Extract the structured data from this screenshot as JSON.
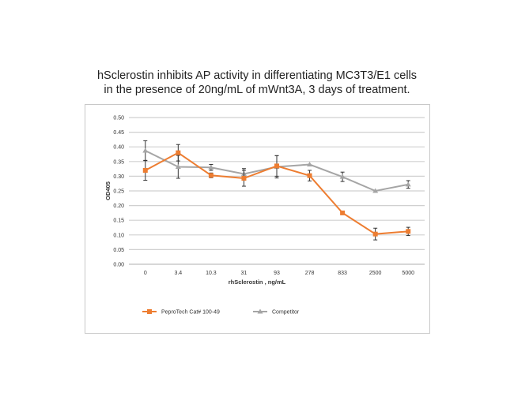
{
  "chart_data": {
    "type": "line",
    "title_lines": [
      "hSclerostin inhibits AP activity in differentiating MC3T3/E1 cells",
      "in the presence of 20ng/mL of mWnt3A, 3 days of treatment."
    ],
    "xlabel": "rhSclerostin , ng/mL",
    "ylabel": "OD405",
    "categories": [
      "0",
      "3.4",
      "10.3",
      "31",
      "93",
      "278",
      "833",
      "2500",
      "5000"
    ],
    "yticks": [
      "0.00",
      "0.05",
      "0.10",
      "0.15",
      "0.20",
      "0.25",
      "0.30",
      "0.35",
      "0.40",
      "0.45",
      "0.50"
    ],
    "ylim": [
      0,
      0.5
    ],
    "grid": true,
    "legend_position": "bottom",
    "series": [
      {
        "name": "PeproTech Cat# 100-49",
        "color": "#ED7D31",
        "marker": "square",
        "values": [
          0.32,
          0.38,
          0.303,
          0.293,
          0.335,
          0.302,
          0.175,
          0.103,
          0.112
        ],
        "errors": [
          0.034,
          0.028,
          0.008,
          0.027,
          0.035,
          0.018,
          0.0,
          0.02,
          0.014
        ]
      },
      {
        "name": "Competitor",
        "color": "#A5A5A5",
        "marker": "triangle",
        "values": [
          0.387,
          0.332,
          0.33,
          0.308,
          0.332,
          0.34,
          0.298,
          0.25,
          0.272
        ],
        "errors": [
          0.034,
          0.039,
          0.01,
          0.018,
          0.038,
          0.0,
          0.016,
          0.0,
          0.013
        ]
      }
    ]
  }
}
